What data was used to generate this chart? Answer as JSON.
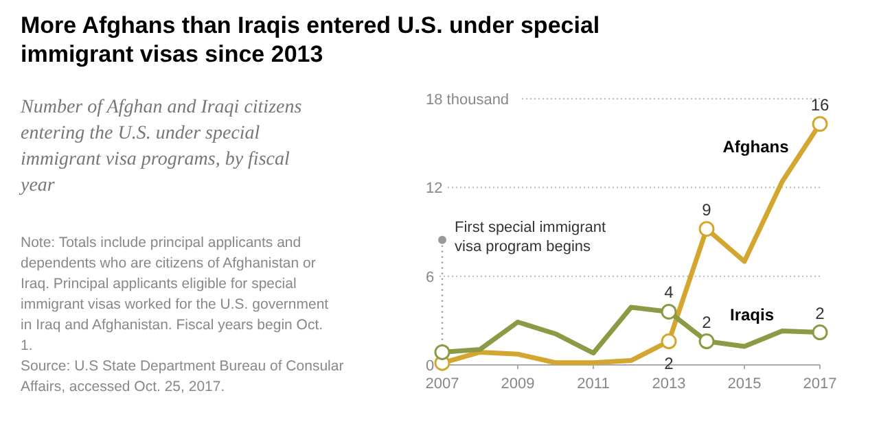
{
  "chart_data": {
    "type": "line",
    "title": "More Afghans than Iraqis entered U.S. under special immigrant visas since 2013",
    "subtitle": "Number of Afghan and Iraqi citizens entering the U.S. under special immigrant visa programs, by fiscal year",
    "x": [
      2007,
      2008,
      2009,
      2010,
      2011,
      2012,
      2013,
      2014,
      2015,
      2016,
      2017
    ],
    "series": [
      {
        "name": "Afghans",
        "color": "#d3a72f",
        "values": [
          0.13,
          0.86,
          0.73,
          0.15,
          0.15,
          0.3,
          1.6,
          9.2,
          7.0,
          12.4,
          16.3
        ],
        "value_labels": [
          null,
          null,
          null,
          null,
          null,
          null,
          "2",
          "9",
          null,
          null,
          "16"
        ]
      },
      {
        "name": "Iraqis",
        "color": "#8a9a45",
        "values": [
          0.86,
          1.05,
          2.9,
          2.1,
          0.8,
          3.9,
          3.6,
          1.6,
          1.25,
          2.3,
          2.2
        ],
        "value_labels": [
          null,
          null,
          null,
          null,
          null,
          null,
          "4",
          "2",
          null,
          null,
          "2"
        ]
      }
    ],
    "xlim": [
      2007,
      2017
    ],
    "xticks": [
      2007,
      2009,
      2011,
      2013,
      2015,
      2017
    ],
    "ylim": [
      0,
      18
    ],
    "yticks": [
      0,
      6,
      12,
      {
        "value": 18,
        "label": "18 thousand"
      }
    ],
    "grid": "y",
    "line_style": "solid",
    "ref_lines": [
      {
        "axis": "x",
        "value": 2007,
        "label": "First special immigrant visa program begins",
        "line_style": "dotted",
        "color": "#999999"
      }
    ],
    "annotations": [
      "Note: Totals include principal applicants and dependents who are citizens of Afghanistan or Iraq. Principal applicants eligible for special immigrant visas worked for the U.S. government in Iraq and Afghanistan. Fiscal years begin Oct. 1.",
      "Source: U.S State Department Bureau of Consular Affairs, accessed Oct. 25, 2017."
    ]
  }
}
